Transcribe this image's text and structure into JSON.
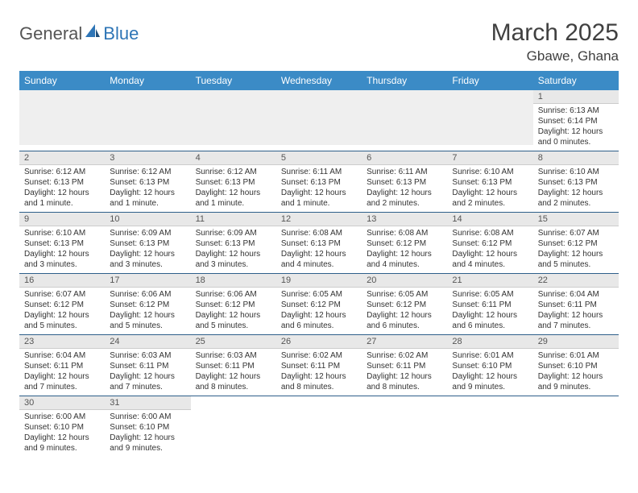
{
  "logo": {
    "text1": "General",
    "text2": "Blue",
    "color1": "#555555",
    "color2": "#2e75b6"
  },
  "title": "March 2025",
  "location": "Gbawe, Ghana",
  "header_bg": "#3b8bc6",
  "header_text_color": "#ffffff",
  "daynum_bg": "#e8e8e8",
  "row_border_color": "#2e5f8a",
  "weekdays": [
    "Sunday",
    "Monday",
    "Tuesday",
    "Wednesday",
    "Thursday",
    "Friday",
    "Saturday"
  ],
  "weeks": [
    [
      null,
      null,
      null,
      null,
      null,
      null,
      {
        "n": "1",
        "sr": "Sunrise: 6:13 AM",
        "ss": "Sunset: 6:14 PM",
        "d1": "Daylight: 12 hours",
        "d2": "and 0 minutes."
      }
    ],
    [
      {
        "n": "2",
        "sr": "Sunrise: 6:12 AM",
        "ss": "Sunset: 6:13 PM",
        "d1": "Daylight: 12 hours",
        "d2": "and 1 minute."
      },
      {
        "n": "3",
        "sr": "Sunrise: 6:12 AM",
        "ss": "Sunset: 6:13 PM",
        "d1": "Daylight: 12 hours",
        "d2": "and 1 minute."
      },
      {
        "n": "4",
        "sr": "Sunrise: 6:12 AM",
        "ss": "Sunset: 6:13 PM",
        "d1": "Daylight: 12 hours",
        "d2": "and 1 minute."
      },
      {
        "n": "5",
        "sr": "Sunrise: 6:11 AM",
        "ss": "Sunset: 6:13 PM",
        "d1": "Daylight: 12 hours",
        "d2": "and 1 minute."
      },
      {
        "n": "6",
        "sr": "Sunrise: 6:11 AM",
        "ss": "Sunset: 6:13 PM",
        "d1": "Daylight: 12 hours",
        "d2": "and 2 minutes."
      },
      {
        "n": "7",
        "sr": "Sunrise: 6:10 AM",
        "ss": "Sunset: 6:13 PM",
        "d1": "Daylight: 12 hours",
        "d2": "and 2 minutes."
      },
      {
        "n": "8",
        "sr": "Sunrise: 6:10 AM",
        "ss": "Sunset: 6:13 PM",
        "d1": "Daylight: 12 hours",
        "d2": "and 2 minutes."
      }
    ],
    [
      {
        "n": "9",
        "sr": "Sunrise: 6:10 AM",
        "ss": "Sunset: 6:13 PM",
        "d1": "Daylight: 12 hours",
        "d2": "and 3 minutes."
      },
      {
        "n": "10",
        "sr": "Sunrise: 6:09 AM",
        "ss": "Sunset: 6:13 PM",
        "d1": "Daylight: 12 hours",
        "d2": "and 3 minutes."
      },
      {
        "n": "11",
        "sr": "Sunrise: 6:09 AM",
        "ss": "Sunset: 6:13 PM",
        "d1": "Daylight: 12 hours",
        "d2": "and 3 minutes."
      },
      {
        "n": "12",
        "sr": "Sunrise: 6:08 AM",
        "ss": "Sunset: 6:13 PM",
        "d1": "Daylight: 12 hours",
        "d2": "and 4 minutes."
      },
      {
        "n": "13",
        "sr": "Sunrise: 6:08 AM",
        "ss": "Sunset: 6:12 PM",
        "d1": "Daylight: 12 hours",
        "d2": "and 4 minutes."
      },
      {
        "n": "14",
        "sr": "Sunrise: 6:08 AM",
        "ss": "Sunset: 6:12 PM",
        "d1": "Daylight: 12 hours",
        "d2": "and 4 minutes."
      },
      {
        "n": "15",
        "sr": "Sunrise: 6:07 AM",
        "ss": "Sunset: 6:12 PM",
        "d1": "Daylight: 12 hours",
        "d2": "and 5 minutes."
      }
    ],
    [
      {
        "n": "16",
        "sr": "Sunrise: 6:07 AM",
        "ss": "Sunset: 6:12 PM",
        "d1": "Daylight: 12 hours",
        "d2": "and 5 minutes."
      },
      {
        "n": "17",
        "sr": "Sunrise: 6:06 AM",
        "ss": "Sunset: 6:12 PM",
        "d1": "Daylight: 12 hours",
        "d2": "and 5 minutes."
      },
      {
        "n": "18",
        "sr": "Sunrise: 6:06 AM",
        "ss": "Sunset: 6:12 PM",
        "d1": "Daylight: 12 hours",
        "d2": "and 5 minutes."
      },
      {
        "n": "19",
        "sr": "Sunrise: 6:05 AM",
        "ss": "Sunset: 6:12 PM",
        "d1": "Daylight: 12 hours",
        "d2": "and 6 minutes."
      },
      {
        "n": "20",
        "sr": "Sunrise: 6:05 AM",
        "ss": "Sunset: 6:12 PM",
        "d1": "Daylight: 12 hours",
        "d2": "and 6 minutes."
      },
      {
        "n": "21",
        "sr": "Sunrise: 6:05 AM",
        "ss": "Sunset: 6:11 PM",
        "d1": "Daylight: 12 hours",
        "d2": "and 6 minutes."
      },
      {
        "n": "22",
        "sr": "Sunrise: 6:04 AM",
        "ss": "Sunset: 6:11 PM",
        "d1": "Daylight: 12 hours",
        "d2": "and 7 minutes."
      }
    ],
    [
      {
        "n": "23",
        "sr": "Sunrise: 6:04 AM",
        "ss": "Sunset: 6:11 PM",
        "d1": "Daylight: 12 hours",
        "d2": "and 7 minutes."
      },
      {
        "n": "24",
        "sr": "Sunrise: 6:03 AM",
        "ss": "Sunset: 6:11 PM",
        "d1": "Daylight: 12 hours",
        "d2": "and 7 minutes."
      },
      {
        "n": "25",
        "sr": "Sunrise: 6:03 AM",
        "ss": "Sunset: 6:11 PM",
        "d1": "Daylight: 12 hours",
        "d2": "and 8 minutes."
      },
      {
        "n": "26",
        "sr": "Sunrise: 6:02 AM",
        "ss": "Sunset: 6:11 PM",
        "d1": "Daylight: 12 hours",
        "d2": "and 8 minutes."
      },
      {
        "n": "27",
        "sr": "Sunrise: 6:02 AM",
        "ss": "Sunset: 6:11 PM",
        "d1": "Daylight: 12 hours",
        "d2": "and 8 minutes."
      },
      {
        "n": "28",
        "sr": "Sunrise: 6:01 AM",
        "ss": "Sunset: 6:10 PM",
        "d1": "Daylight: 12 hours",
        "d2": "and 9 minutes."
      },
      {
        "n": "29",
        "sr": "Sunrise: 6:01 AM",
        "ss": "Sunset: 6:10 PM",
        "d1": "Daylight: 12 hours",
        "d2": "and 9 minutes."
      }
    ],
    [
      {
        "n": "30",
        "sr": "Sunrise: 6:00 AM",
        "ss": "Sunset: 6:10 PM",
        "d1": "Daylight: 12 hours",
        "d2": "and 9 minutes."
      },
      {
        "n": "31",
        "sr": "Sunrise: 6:00 AM",
        "ss": "Sunset: 6:10 PM",
        "d1": "Daylight: 12 hours",
        "d2": "and 9 minutes."
      },
      null,
      null,
      null,
      null,
      null
    ]
  ]
}
